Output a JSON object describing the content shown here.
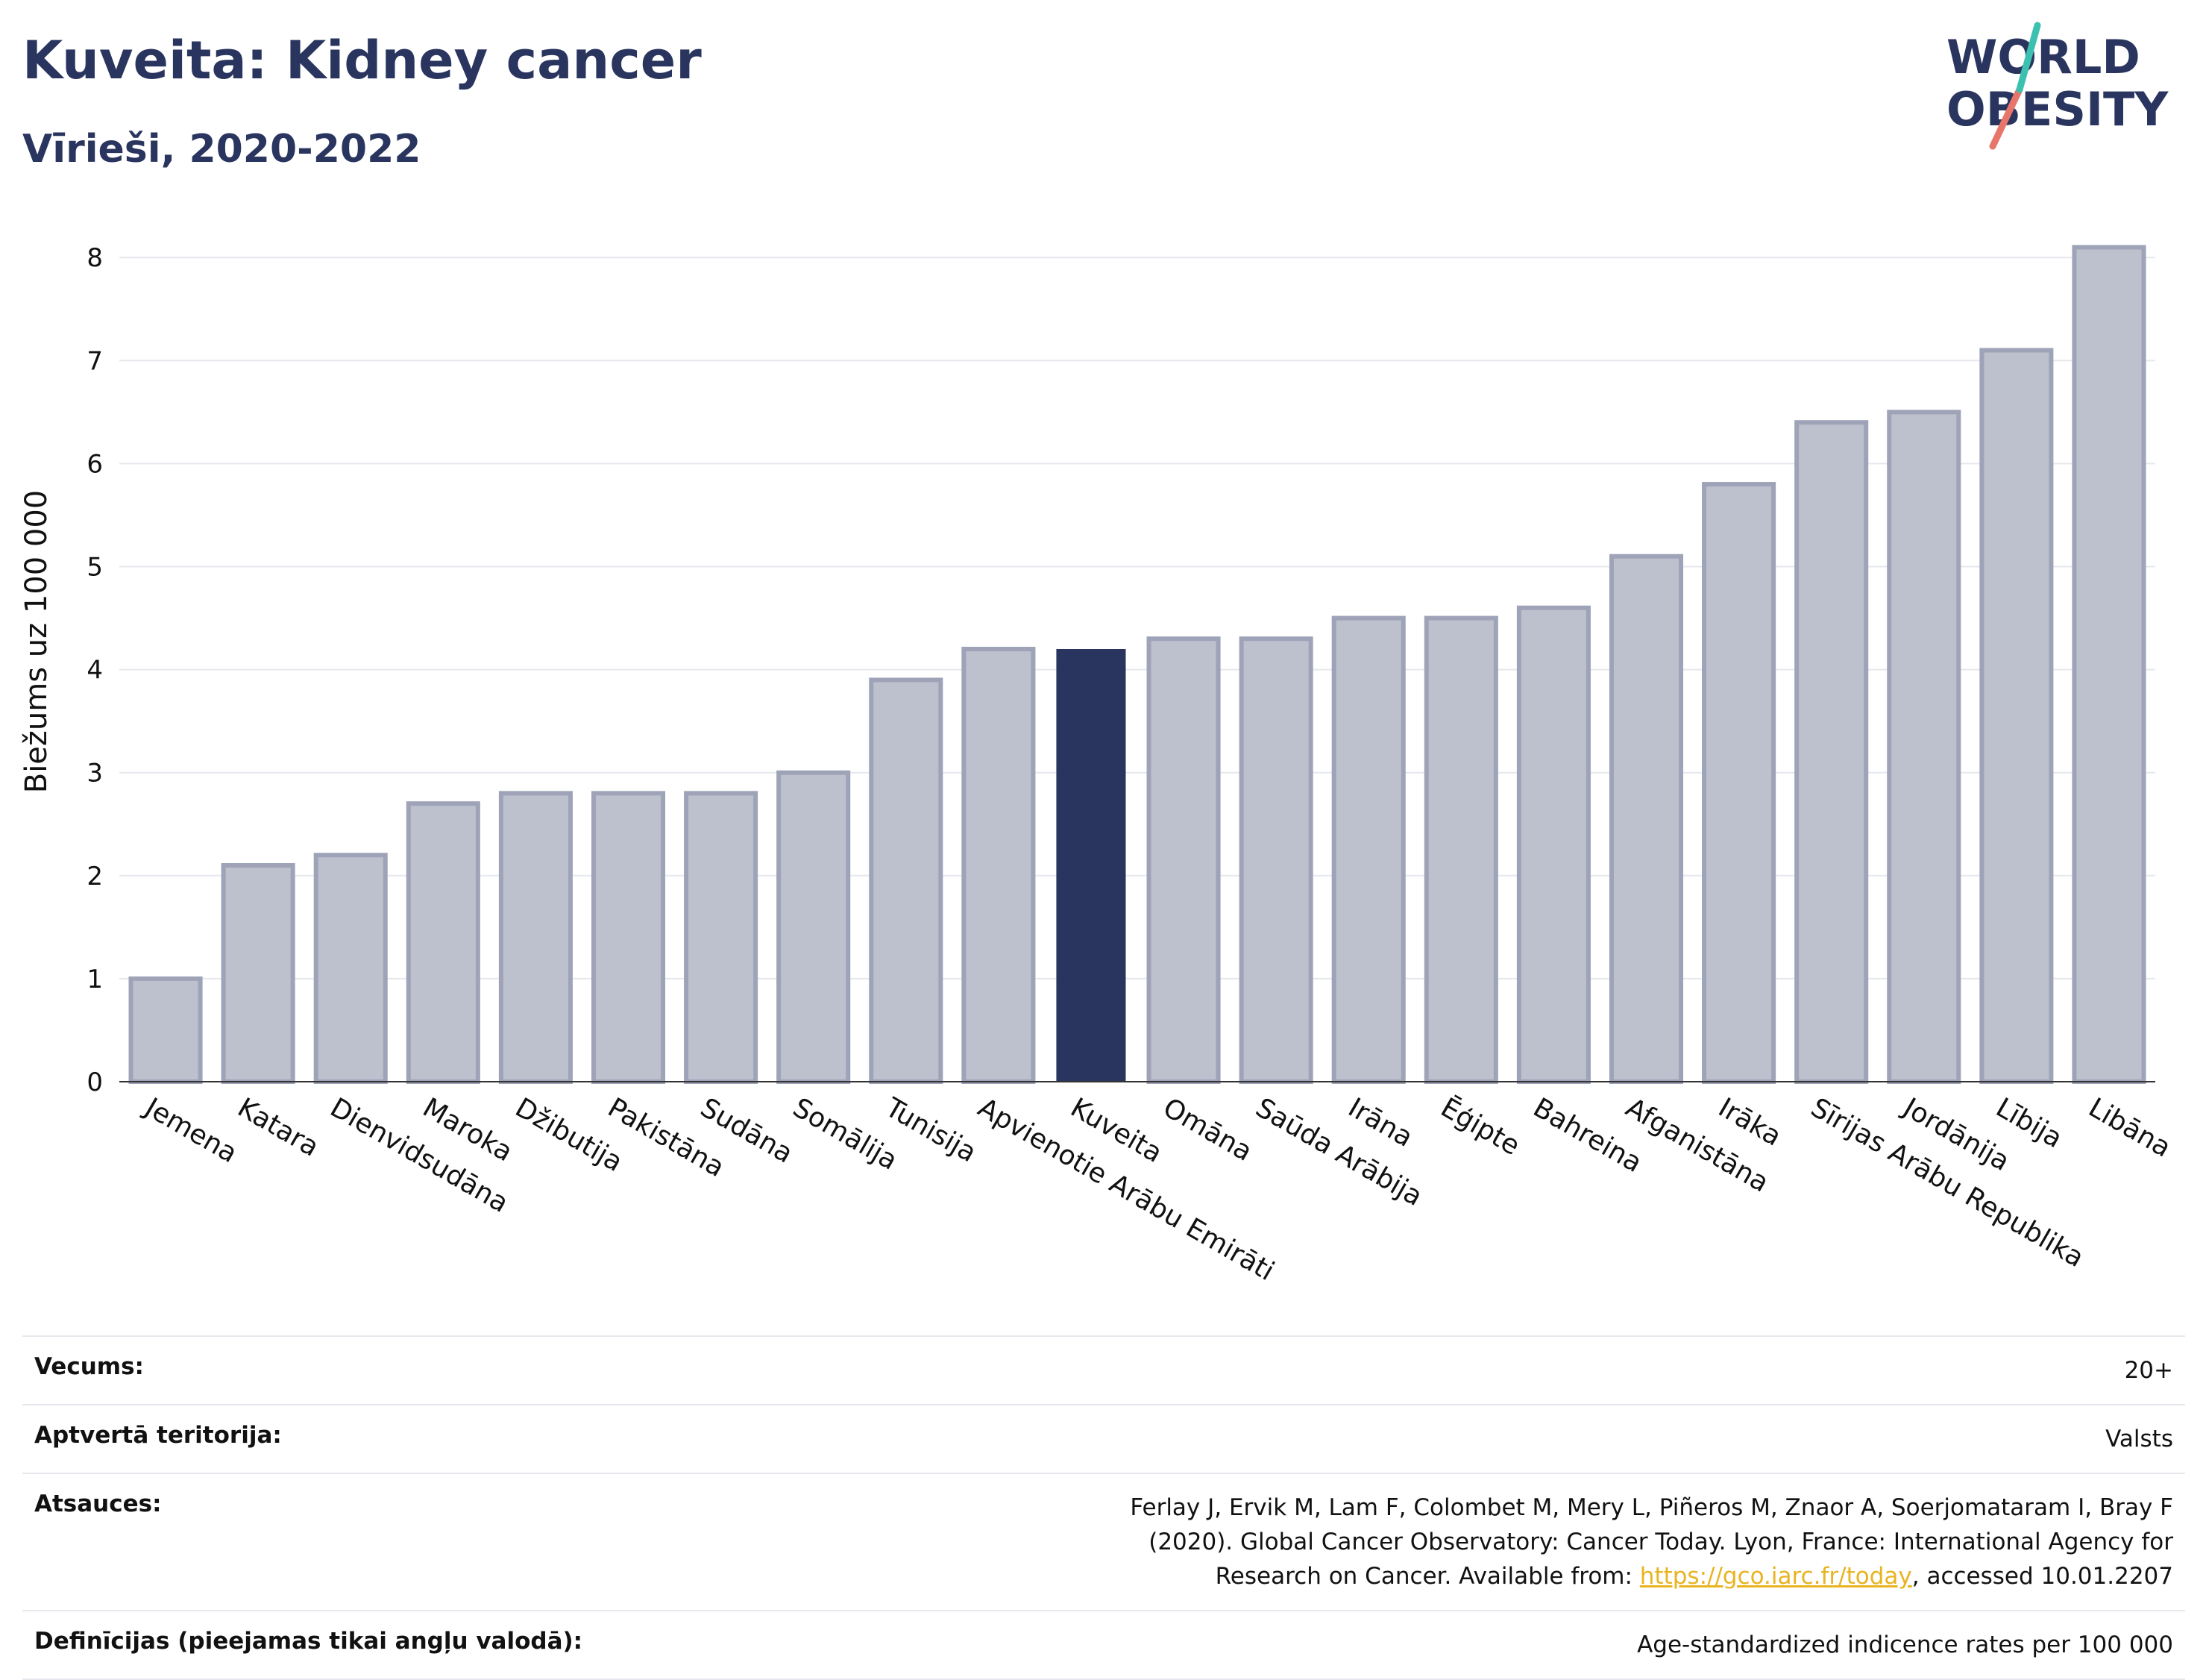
{
  "header": {
    "title": "Kuveita: Kidney cancer",
    "subtitle": "Vīrieši, 2020-2022"
  },
  "logo": {
    "line1": "WORLD",
    "line2": "OBESITY"
  },
  "colors": {
    "highlight": "#2a355f",
    "bar_fill": "#bdc0cd",
    "bar_stroke": "#9ea3b8",
    "grid": "#e6e8ee"
  },
  "chart_data": {
    "type": "bar",
    "ylabel": "Biežums uz 100 000",
    "ylim": [
      0,
      8.4
    ],
    "yticks": [
      0,
      1,
      2,
      3,
      4,
      5,
      6,
      7,
      8
    ],
    "categories": [
      "Jemena",
      "Katara",
      "Dienvidsudāna",
      "Maroka",
      "Džibutija",
      "Pakistāna",
      "Sudāna",
      "Somālija",
      "Tunisija",
      "Apvienotie Arābu Emirāti",
      "Kuveita",
      "Omāna",
      "Saūda Arābija",
      "Irāna",
      "Ēģipte",
      "Bahreina",
      "Afganistāna",
      "Irāka",
      "Sīrijas Arābu Republika",
      "Jordānija",
      "Lībija",
      "Libāna"
    ],
    "values": [
      1.0,
      2.1,
      2.2,
      2.7,
      2.8,
      2.8,
      2.8,
      3.0,
      3.9,
      4.2,
      4.2,
      4.3,
      4.3,
      4.5,
      4.5,
      4.6,
      5.1,
      5.8,
      6.4,
      6.5,
      7.1,
      8.1
    ],
    "highlight": "Kuveita",
    "grid": true
  },
  "info": {
    "age_label": "Vecums:",
    "age_value": "20+",
    "territory_label": "Aptvertā teritorija:",
    "territory_value": "Valsts",
    "refs_label": "Atsauces:",
    "refs_text_1": "Ferlay J, Ervik M, Lam F, Colombet M, Mery L, Piñeros M, Znaor A, Soerjomataram I, Bray F (2020). Global Cancer Observatory: Cancer Today. Lyon, France: International Agency for Research on Cancer. Available from: ",
    "refs_link": "https://gco.iarc.fr/today",
    "refs_text_2": ", accessed 10.01.2207",
    "def_label": "Definīcijas (pieejamas tikai angļu valodā):",
    "def_value": "Age-standardized indicence rates per 100 000"
  }
}
